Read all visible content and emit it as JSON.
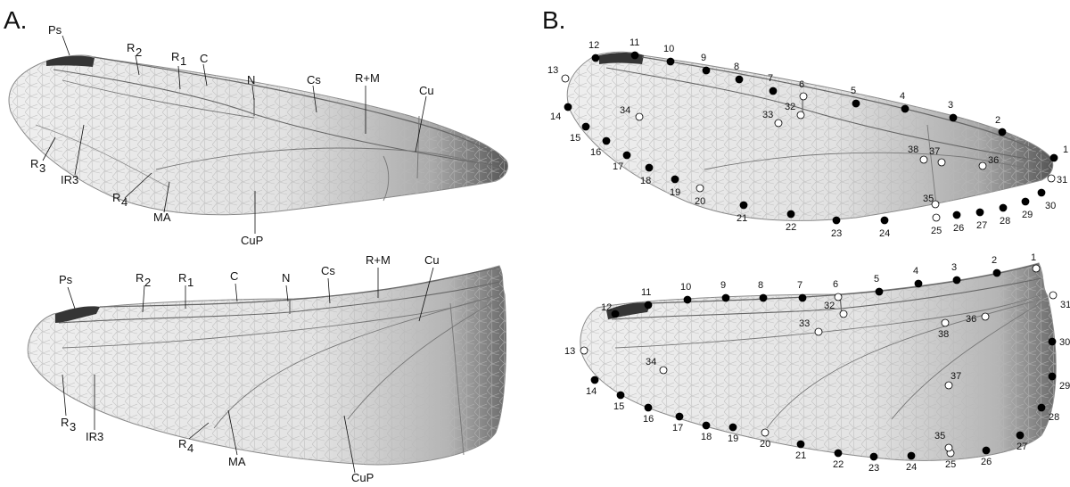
{
  "panels": [
    {
      "label": "A.",
      "forewing_vein_labels": [
        "Ps",
        "R",
        "2",
        "R",
        "1",
        "C",
        "N",
        "Cs",
        "R+M",
        "Cu",
        "R",
        "3",
        "IR3",
        "R",
        "4",
        "MA",
        "CuP"
      ],
      "hindwing_vein_labels": [
        "Ps",
        "R",
        "2",
        "R",
        "1",
        "C",
        "N",
        "Cs",
        "R+M",
        "Cu",
        "R",
        "3",
        "IR3",
        "R",
        "4",
        "MA",
        "CuP"
      ]
    },
    {
      "label": "B.",
      "forewing_landmarks": {
        "filled": [
          "1",
          "2",
          "3",
          "4",
          "5",
          "7",
          "8",
          "9",
          "10",
          "11",
          "12",
          "14",
          "15",
          "16",
          "17",
          "18",
          "19",
          "21",
          "22",
          "23",
          "24",
          "26",
          "27",
          "28",
          "29",
          "30"
        ],
        "open": [
          "6",
          "13",
          "20",
          "25",
          "31",
          "32",
          "33",
          "34",
          "35",
          "36",
          "37",
          "38"
        ]
      },
      "hindwing_landmarks": {
        "filled": [
          "2",
          "3",
          "4",
          "5",
          "7",
          "8",
          "9",
          "10",
          "11",
          "12",
          "14",
          "15",
          "16",
          "17",
          "18",
          "19",
          "21",
          "22",
          "23",
          "24",
          "26",
          "27",
          "28",
          "29",
          "30"
        ],
        "open": [
          "1",
          "6",
          "13",
          "20",
          "25",
          "31",
          "32",
          "33",
          "34",
          "35",
          "36",
          "37",
          "38"
        ]
      }
    }
  ],
  "colors": {
    "wing_membrane": "#ececec",
    "wing_dark_base": "#7c7c7c",
    "pterostigma": "#3a3a3a",
    "vein": "#6a6a6a",
    "filled_landmark": "#000000",
    "open_landmark": "#ffffff"
  }
}
